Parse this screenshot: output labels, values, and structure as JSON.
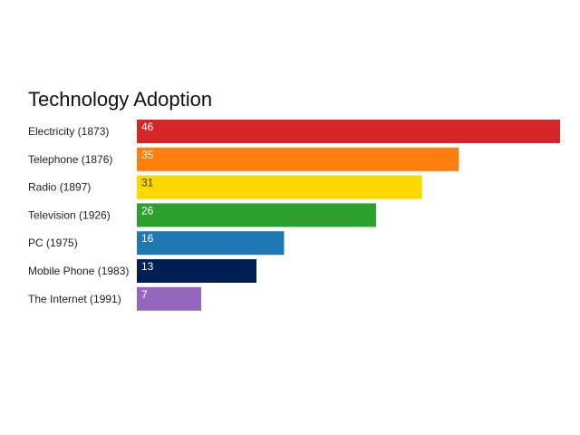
{
  "chart_data": {
    "type": "bar",
    "orientation": "horizontal",
    "title": "Technology Adoption",
    "xlabel": "",
    "ylabel": "",
    "categories": [
      "Electricity (1873)",
      "Telephone (1876)",
      "Radio (1897)",
      "Television (1926)",
      "PC (1975)",
      "Mobile Phone (1983)",
      "The Internet (1991)"
    ],
    "values": [
      46,
      35,
      31,
      26,
      16,
      13,
      7
    ],
    "colors": [
      "#d62728",
      "#ff7f0e",
      "#ffd700",
      "#2ca02c",
      "#1f77b4",
      "#001f54",
      "#9467bd"
    ],
    "value_label_colors": [
      "#ffffff",
      "#ffffff",
      "#333333",
      "#ffffff",
      "#ffffff",
      "#ffffff",
      "#ffffff"
    ],
    "xlim": [
      0,
      46
    ],
    "grid": false,
    "legend": "none",
    "data_labels": "inside-left"
  }
}
